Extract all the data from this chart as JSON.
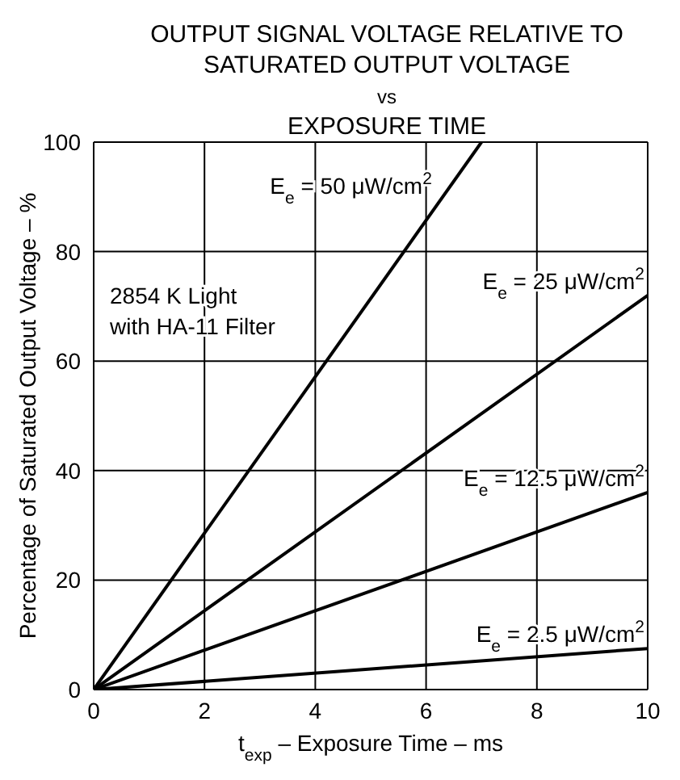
{
  "chart_data": {
    "type": "line",
    "title": "OUTPUT SIGNAL VOLTAGE RELATIVE TO\nSATURATED OUTPUT VOLTAGE\nvs\nEXPOSURE TIME",
    "xlabel": "t$_{exp}$ – Exposure Time – ms",
    "ylabel": "Percentage of Saturated Output Voltage – %",
    "series": [
      {
        "name": "E$_{e}$ = 50 μW/cm$^{2}$",
        "color": "#000000",
        "x": [
          0,
          7
        ],
        "values": [
          0,
          100
        ]
      },
      {
        "name": "E$_{e}$ = 25 μW/cm$^{2}$",
        "color": "#000000",
        "x": [
          0,
          10
        ],
        "values": [
          0,
          72
        ]
      },
      {
        "name": "E$_{e}$ = 12.5 μW/cm$^{2}$",
        "color": "#000000",
        "x": [
          0,
          10
        ],
        "values": [
          0,
          36
        ]
      },
      {
        "name": "E$_{e}$ = 2.5 μW/cm$^{2}$",
        "color": "#000000",
        "x": [
          0,
          10
        ],
        "values": [
          0,
          7.5
        ]
      }
    ],
    "xlim": [
      0,
      10
    ],
    "xticks": [
      0,
      2,
      4,
      6,
      8,
      10
    ],
    "ylim": [
      0,
      100
    ],
    "yticks": [
      0,
      20,
      40,
      60,
      80,
      100
    ],
    "grid": true,
    "marker": "none",
    "line_style": "solid",
    "annotations": [
      "2854 K Light\nwith HA-11 Filter"
    ]
  }
}
